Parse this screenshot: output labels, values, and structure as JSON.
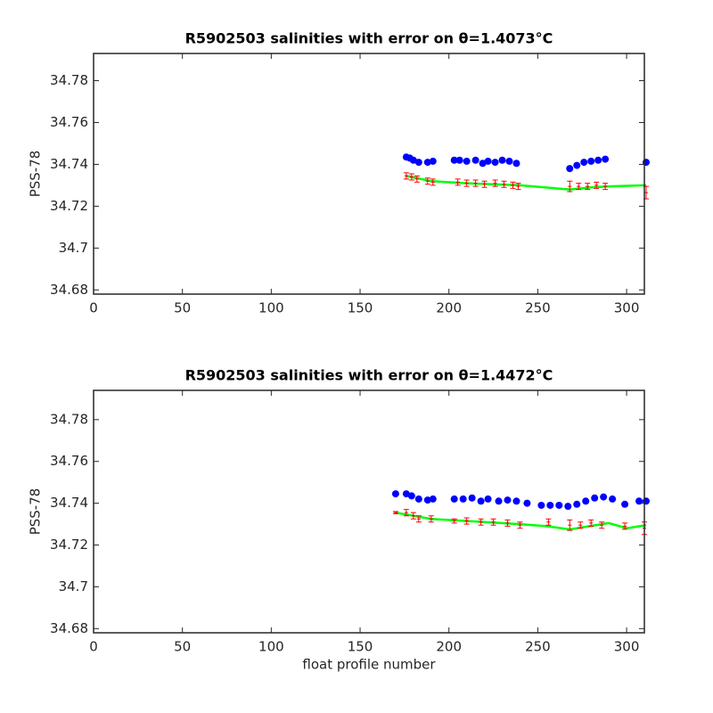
{
  "chart_data": [
    {
      "type": "scatter",
      "title": "R5902503 salinities with error on θ=1.4073°C",
      "ylabel": "PSS-78",
      "xlim": [
        0,
        310
      ],
      "ylim": [
        34.678,
        34.793
      ],
      "xticks": [
        0,
        50,
        100,
        150,
        200,
        250,
        300
      ],
      "yticks": [
        34.68,
        34.7,
        34.72,
        34.74,
        34.76,
        34.78
      ],
      "series": [
        {
          "mode": "line",
          "color": "#00ff00",
          "x": [
            176,
            190,
            210,
            240,
            268,
            280,
            290,
            311
          ],
          "values": [
            34.7345,
            34.732,
            34.731,
            34.73,
            34.728,
            34.729,
            34.7295,
            34.73
          ]
        },
        {
          "mode": "errorbar",
          "color": "#ff0000",
          "x": [
            176,
            179,
            182,
            188,
            191,
            205,
            210,
            215,
            220,
            226,
            231,
            236,
            239,
            268,
            273,
            278,
            283,
            288,
            311
          ],
          "values": [
            34.7345,
            34.734,
            34.733,
            34.732,
            34.7315,
            34.7315,
            34.731,
            34.731,
            34.7305,
            34.731,
            34.7305,
            34.73,
            34.7295,
            34.7295,
            34.7295,
            34.7295,
            34.73,
            34.7295,
            34.7265
          ],
          "errors": [
            0.0015,
            0.0015,
            0.0015,
            0.0015,
            0.0015,
            0.0015,
            0.0015,
            0.0015,
            0.0015,
            0.0015,
            0.0015,
            0.0015,
            0.0015,
            0.0025,
            0.0015,
            0.0015,
            0.0015,
            0.0015,
            0.003
          ]
        },
        {
          "mode": "markers",
          "color": "#0000ff",
          "x": [
            176,
            178,
            180,
            183,
            188,
            191,
            203,
            206,
            210,
            215,
            219,
            222,
            226,
            230,
            234,
            238,
            268,
            272,
            276,
            280,
            284,
            288,
            311
          ],
          "values": [
            34.7435,
            34.743,
            34.742,
            34.741,
            34.741,
            34.7415,
            34.742,
            34.742,
            34.7415,
            34.742,
            34.7405,
            34.7415,
            34.741,
            34.742,
            34.7415,
            34.7405,
            34.738,
            34.7395,
            34.741,
            34.7415,
            34.742,
            34.7425,
            34.741
          ]
        }
      ]
    },
    {
      "type": "scatter",
      "title": "R5902503 salinities with error on θ=1.4472°C",
      "ylabel": "PSS-78",
      "xlabel": "float profile number",
      "xlim": [
        0,
        310
      ],
      "ylim": [
        34.678,
        34.794
      ],
      "xticks": [
        0,
        50,
        100,
        150,
        200,
        250,
        300
      ],
      "yticks": [
        34.68,
        34.7,
        34.72,
        34.74,
        34.76,
        34.78
      ],
      "series": [
        {
          "mode": "line",
          "color": "#00ff00",
          "x": [
            170,
            190,
            220,
            240,
            255,
            268,
            290,
            300,
            311
          ],
          "values": [
            34.7355,
            34.7325,
            34.731,
            34.73,
            34.729,
            34.7275,
            34.7305,
            34.728,
            34.7295
          ]
        },
        {
          "mode": "errorbar",
          "color": "#ff0000",
          "x": [
            170,
            176,
            180,
            183,
            190,
            203,
            210,
            218,
            225,
            233,
            240,
            256,
            268,
            274,
            280,
            286,
            299,
            310
          ],
          "values": [
            34.7355,
            34.7355,
            34.734,
            34.7325,
            34.7325,
            34.7315,
            34.7315,
            34.731,
            34.731,
            34.7305,
            34.7295,
            34.731,
            34.7295,
            34.7295,
            34.7305,
            34.7295,
            34.729,
            34.728
          ],
          "errors": [
            0.0005,
            0.0015,
            0.0015,
            0.0015,
            0.0015,
            0.001,
            0.0015,
            0.0015,
            0.0015,
            0.0015,
            0.0015,
            0.0015,
            0.0025,
            0.0015,
            0.0015,
            0.0015,
            0.0015,
            0.003
          ]
        },
        {
          "mode": "markers",
          "color": "#0000ff",
          "x": [
            170,
            176,
            179,
            183,
            188,
            191,
            203,
            208,
            213,
            218,
            222,
            228,
            233,
            238,
            244,
            252,
            257,
            262,
            267,
            272,
            277,
            282,
            287,
            292,
            299,
            307,
            311
          ],
          "values": [
            34.7445,
            34.7445,
            34.7435,
            34.742,
            34.7415,
            34.742,
            34.742,
            34.742,
            34.7425,
            34.741,
            34.742,
            34.741,
            34.7415,
            34.741,
            34.74,
            34.739,
            34.739,
            34.739,
            34.7385,
            34.7395,
            34.741,
            34.7425,
            34.743,
            34.742,
            34.7395,
            34.741,
            34.741
          ]
        }
      ]
    }
  ]
}
